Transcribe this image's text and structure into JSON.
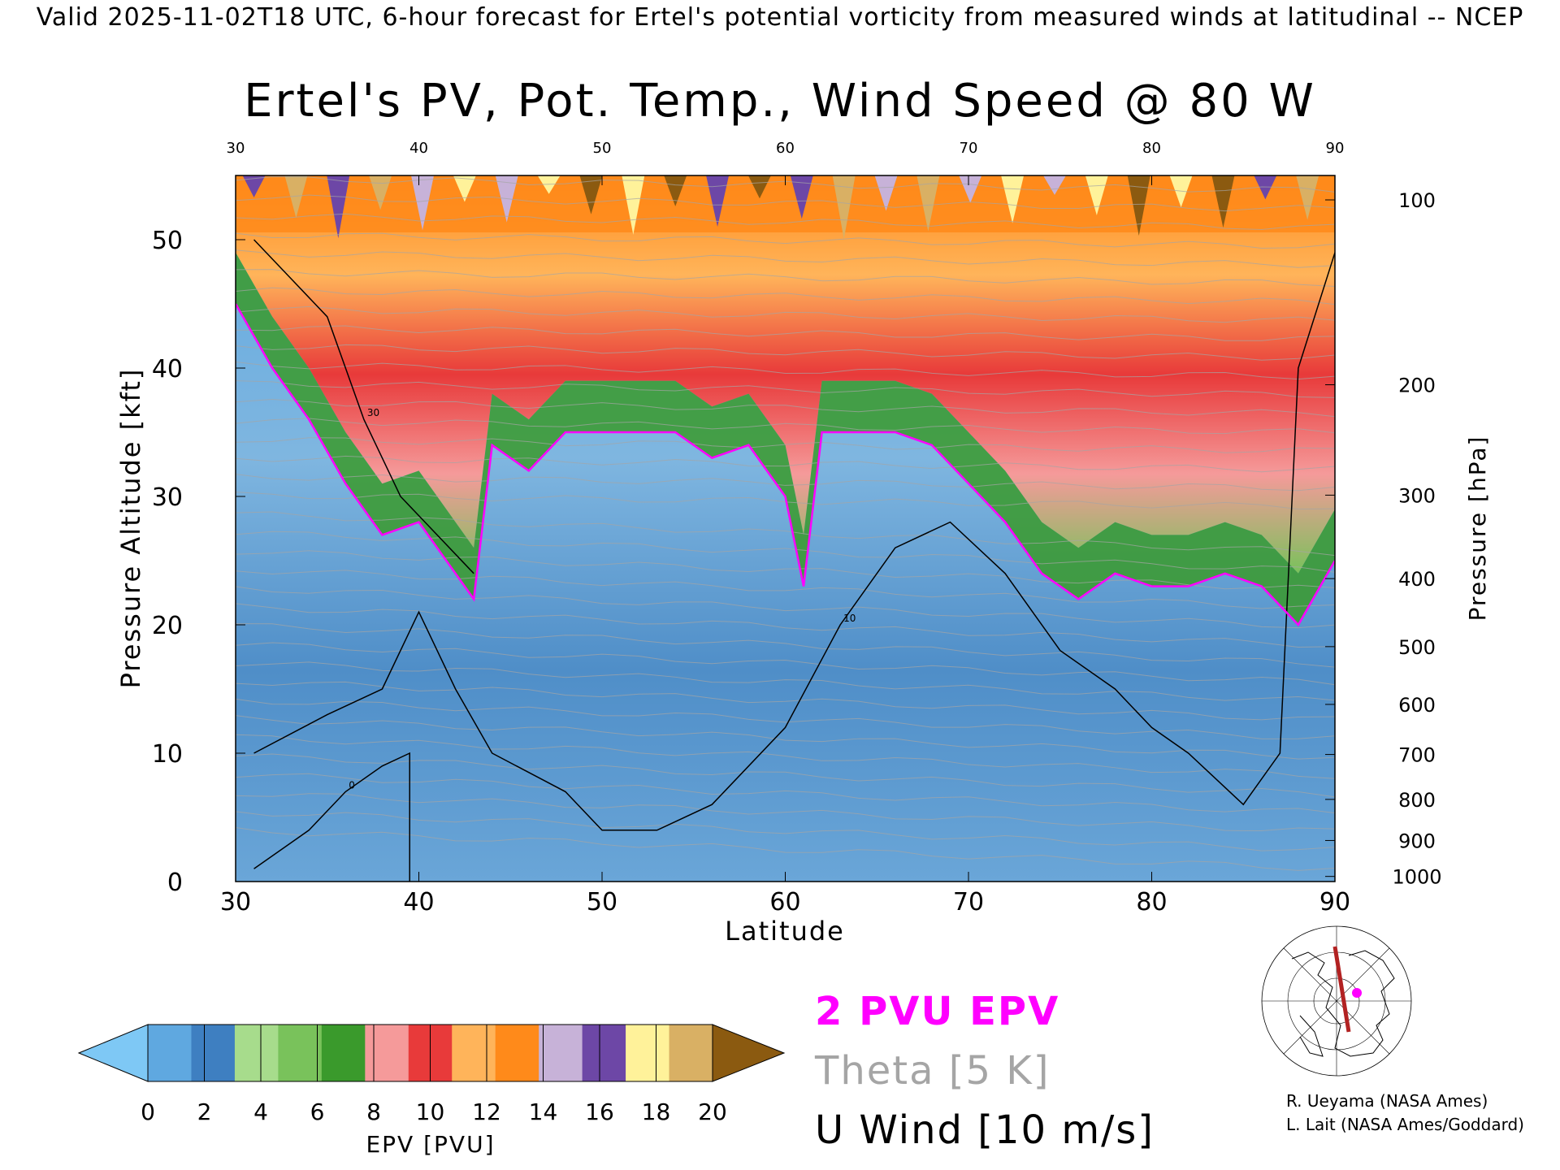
{
  "header": {
    "valid_line": "Valid 2025-11-02T18 UTC, 6-hour forecast for Ertel's potential vorticity from measured winds at latitudinal -- NCEP"
  },
  "chart_data": {
    "type": "heatmap",
    "title": "Ertel's PV, Pot. Temp., Wind Speed @ 80 W",
    "xlabel": "Latitude",
    "ylabel_left": "Pressure Altitude [kft]",
    "ylabel_right": "Pressure [hPa]",
    "xlim": [
      30,
      90
    ],
    "ylim": [
      0,
      55
    ],
    "x_ticks": [
      "30",
      "40",
      "50",
      "60",
      "70",
      "80",
      "90"
    ],
    "y_ticks_left": [
      "0",
      "10",
      "20",
      "30",
      "40",
      "50"
    ],
    "y_ticks_right": [
      {
        "label": "100",
        "kft": 53.1
      },
      {
        "label": "200",
        "kft": 38.7
      },
      {
        "label": "300",
        "kft": 30.1
      },
      {
        "label": "400",
        "kft": 23.6
      },
      {
        "label": "500",
        "kft": 18.3
      },
      {
        "label": "600",
        "kft": 13.8
      },
      {
        "label": "700",
        "kft": 9.9
      },
      {
        "label": "800",
        "kft": 6.4
      },
      {
        "label": "900",
        "kft": 3.2
      },
      {
        "label": "1000",
        "kft": 0.4
      }
    ],
    "tropopause_2pvu": {
      "lat": [
        30,
        32,
        34,
        36,
        38,
        40,
        42,
        43,
        44,
        46,
        48,
        50,
        52,
        54,
        56,
        58,
        60,
        61,
        62,
        64,
        66,
        68,
        70,
        72,
        74,
        76,
        78,
        80,
        82,
        84,
        86,
        88,
        90
      ],
      "kft": [
        45,
        40,
        36,
        31,
        27,
        28,
        24,
        22,
        34,
        32,
        35,
        35,
        35,
        35,
        33,
        34,
        30,
        23,
        35,
        35,
        35,
        34,
        31,
        28,
        24,
        22,
        24,
        23,
        23,
        24,
        23,
        20,
        25
      ]
    },
    "u_wind_contours": [
      {
        "label": "0",
        "lat": [
          39.5,
          39.5,
          38,
          36,
          34,
          33,
          31
        ],
        "kft": [
          0,
          10,
          9,
          7,
          4,
          3,
          1
        ]
      },
      {
        "label": "10",
        "lat": [
          31,
          35,
          38,
          40,
          42,
          44,
          48,
          50,
          53,
          56,
          60,
          63,
          66,
          69,
          72,
          75,
          78,
          80,
          82,
          85,
          87,
          88,
          90
        ],
        "kft": [
          10,
          13,
          15,
          21,
          15,
          10,
          7,
          4,
          4,
          6,
          12,
          20,
          26,
          28,
          24,
          18,
          15,
          12,
          10,
          6,
          10,
          40,
          49
        ]
      },
      {
        "label": "30",
        "lat": [
          31,
          33,
          35,
          37,
          39,
          41,
          43
        ],
        "kft": [
          50,
          47,
          44,
          36,
          30,
          27,
          24
        ]
      }
    ],
    "theta": {
      "label": "Theta [5 K]",
      "interval_K": 5
    },
    "colorbar": {
      "label": "EPV [PVU]",
      "ticks": [
        "0",
        "2",
        "4",
        "6",
        "8",
        "10",
        "12",
        "14",
        "16",
        "18",
        "20"
      ],
      "colors": [
        "#7ec8f5",
        "#5fa8e0",
        "#3e7fc1",
        "#a7dc8c",
        "#79c25b",
        "#3a9a2c",
        "#f59a9a",
        "#e83a3a",
        "#ffb45a",
        "#ff8a1a",
        "#c7b2d8",
        "#6d47a6",
        "#fff29a",
        "#d9b064",
        "#8b5a10"
      ]
    }
  },
  "legend": {
    "epv_2pvu": "2 PVU EPV",
    "theta": "Theta [5 K]",
    "u_wind": "U Wind [10 m/s]"
  },
  "colors": {
    "pvu_line": "#ff00ff",
    "theta_line": "#a5a5a5",
    "wind_line": "#000000",
    "map_track": "#b22222",
    "map_marker": "#ff00ff"
  },
  "credits": {
    "line1": "R. Ueyama (NASA Ames)",
    "line2": "L. Lait (NASA Ames/Goddard)"
  }
}
